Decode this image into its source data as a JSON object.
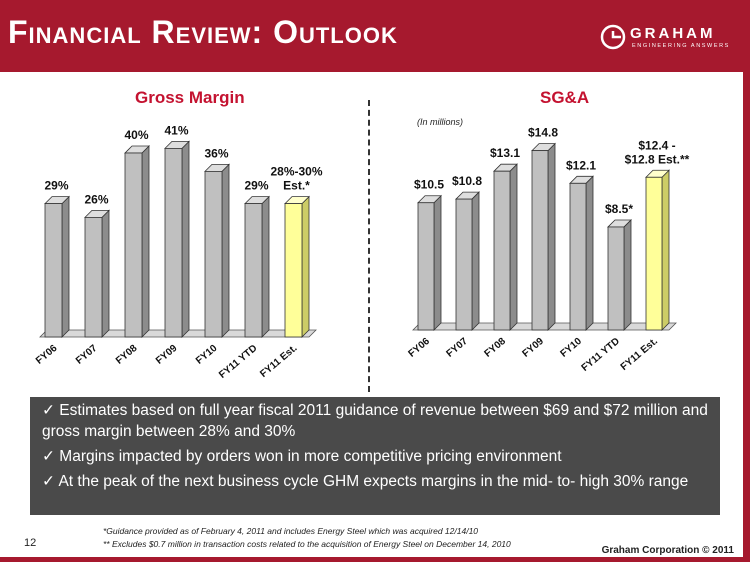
{
  "title": "Financial Review: Outlook",
  "logo": {
    "name": "GRAHAM",
    "tagline": "ENGINEERING ANSWERS"
  },
  "chart_data": [
    {
      "type": "bar",
      "title": "Gross Margin",
      "categories": [
        "FY06",
        "FY07",
        "FY08",
        "FY09",
        "FY10",
        "FY11 YTD",
        "FY11 Est."
      ],
      "values": [
        29,
        26,
        40,
        41,
        36,
        29,
        29
      ],
      "labels": [
        "29%",
        "26%",
        "40%",
        "41%",
        "36%",
        "29%",
        "28%-30%\nEst.*"
      ],
      "ylim": [
        0,
        50
      ],
      "highlight_index": 6,
      "colors": {
        "bar": "#c0c0c0",
        "highlight": "#ffff99"
      }
    },
    {
      "type": "bar",
      "title": "SG&A",
      "note": "(In millions)",
      "categories": [
        "FY06",
        "FY07",
        "FY08",
        "FY09",
        "FY10",
        "FY11 YTD",
        "FY11 Est."
      ],
      "values": [
        10.5,
        10.8,
        13.1,
        14.8,
        12.1,
        8.5,
        12.6
      ],
      "labels": [
        "$10.5",
        "$10.8",
        "$13.1",
        "$14.8",
        "$12.1",
        "$8.5*",
        "$12.4 -\n$12.8 Est.**"
      ],
      "ylim": [
        0,
        16.5
      ],
      "highlight_index": 6,
      "colors": {
        "bar": "#c0c0c0",
        "highlight": "#ffff99"
      }
    }
  ],
  "bullets": [
    "✓   Estimates based on full year fiscal 2011 guidance of revenue between $69 and $72 million and gross margin between 28% and 30%",
    "✓  Margins impacted by orders won in more competitive pricing environment",
    "✓ At the peak of the next business cycle GHM expects margins in the mid- to- high 30% range"
  ],
  "footnotes": [
    "*Guidance provided as of February 4, 2011 and includes Energy Steel which was acquired 12/14/10",
    "** Excludes $0.7 million in transaction costs related to the acquisition of Energy Steel on December 14, 2010"
  ],
  "page_number": "12",
  "copyright": "Graham Corporation © 2011",
  "colors": {
    "brand": "#a6192e",
    "title_red": "#c41230",
    "panel": "#4a4a4a"
  }
}
